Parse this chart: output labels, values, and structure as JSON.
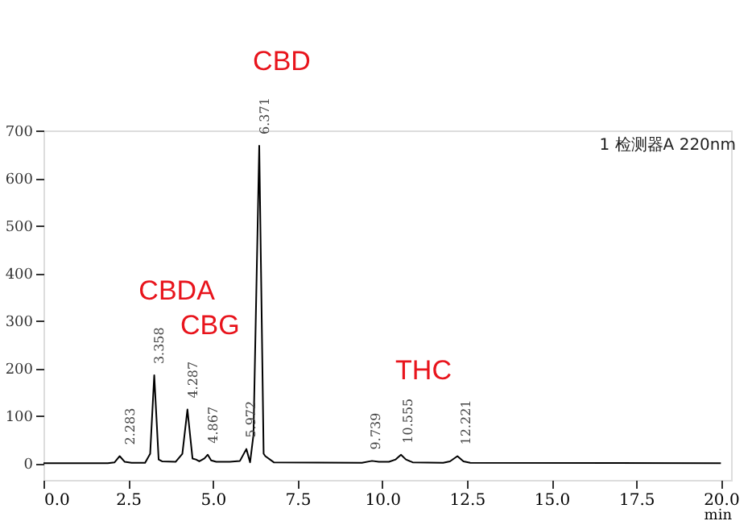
{
  "chart_data": {
    "type": "line",
    "xlabel": "min",
    "x": [
      0,
      1.9,
      2.1,
      2.25,
      2.4,
      2.6,
      3.0,
      3.15,
      3.27,
      3.4,
      3.5,
      3.9,
      4.1,
      4.25,
      4.4,
      4.5,
      4.6,
      4.75,
      4.85,
      4.95,
      5.1,
      5.5,
      5.8,
      5.99,
      6.1,
      6.2,
      6.37,
      6.5,
      6.55,
      6.8,
      9.4,
      9.7,
      9.9,
      10.2,
      10.4,
      10.555,
      10.7,
      10.9,
      11.8,
      12.0,
      12.221,
      12.4,
      12.6,
      20.0
    ],
    "series": [
      {
        "color": "#000000",
        "values": [
          0,
          0,
          2,
          15,
          3,
          1,
          1,
          20,
          185,
          8,
          4,
          3,
          20,
          113,
          10,
          8,
          4,
          10,
          18,
          6,
          3,
          3,
          5,
          30,
          2,
          60,
          668,
          20,
          15,
          2,
          1,
          5,
          3,
          3,
          8,
          18,
          8,
          2,
          1,
          4,
          15,
          4,
          1,
          0
        ]
      }
    ],
    "xlim": [
      0,
      20.3
    ],
    "ylim": [
      -35,
      700
    ],
    "xticks": [
      {
        "value": 0,
        "label": "0.0"
      },
      2.5,
      {
        "value": 5,
        "label": "5.0"
      },
      7.5,
      {
        "value": 10,
        "label": "10.0"
      },
      12.5,
      {
        "value": 15,
        "label": "15.0"
      },
      17.5,
      {
        "value": 20,
        "label": "20.0"
      }
    ],
    "yticks": [
      0,
      100,
      200,
      300,
      400,
      500,
      600,
      700
    ],
    "grid": false,
    "annotations": [
      {
        "text": "CBD",
        "x": 6.371,
        "y": 668
      },
      {
        "text": "CBDA",
        "x": 3.27,
        "y": 185
      },
      {
        "text": "CBG",
        "x": 4.25,
        "y": 113
      },
      {
        "text": "THC",
        "x": 10.555,
        "y": 18
      },
      {
        "text": "2.283",
        "x": 2.6,
        "y": 15
      },
      {
        "text": "3.358",
        "x": 3.45,
        "y": 185
      },
      {
        "text": "4.287",
        "x": 4.45,
        "y": 113
      },
      {
        "text": "4.867",
        "x": 5.05,
        "y": 18
      },
      {
        "text": "5.972",
        "x": 6.15,
        "y": 30
      },
      {
        "text": "6.371",
        "x": 6.55,
        "y": 668
      },
      {
        "text": "9.739",
        "x": 9.85,
        "y": 5
      },
      {
        "text": "10.555",
        "x": 10.8,
        "y": 18
      },
      {
        "text": "12.221",
        "x": 12.5,
        "y": 15
      },
      "1 检测器A 220nm"
    ]
  }
}
